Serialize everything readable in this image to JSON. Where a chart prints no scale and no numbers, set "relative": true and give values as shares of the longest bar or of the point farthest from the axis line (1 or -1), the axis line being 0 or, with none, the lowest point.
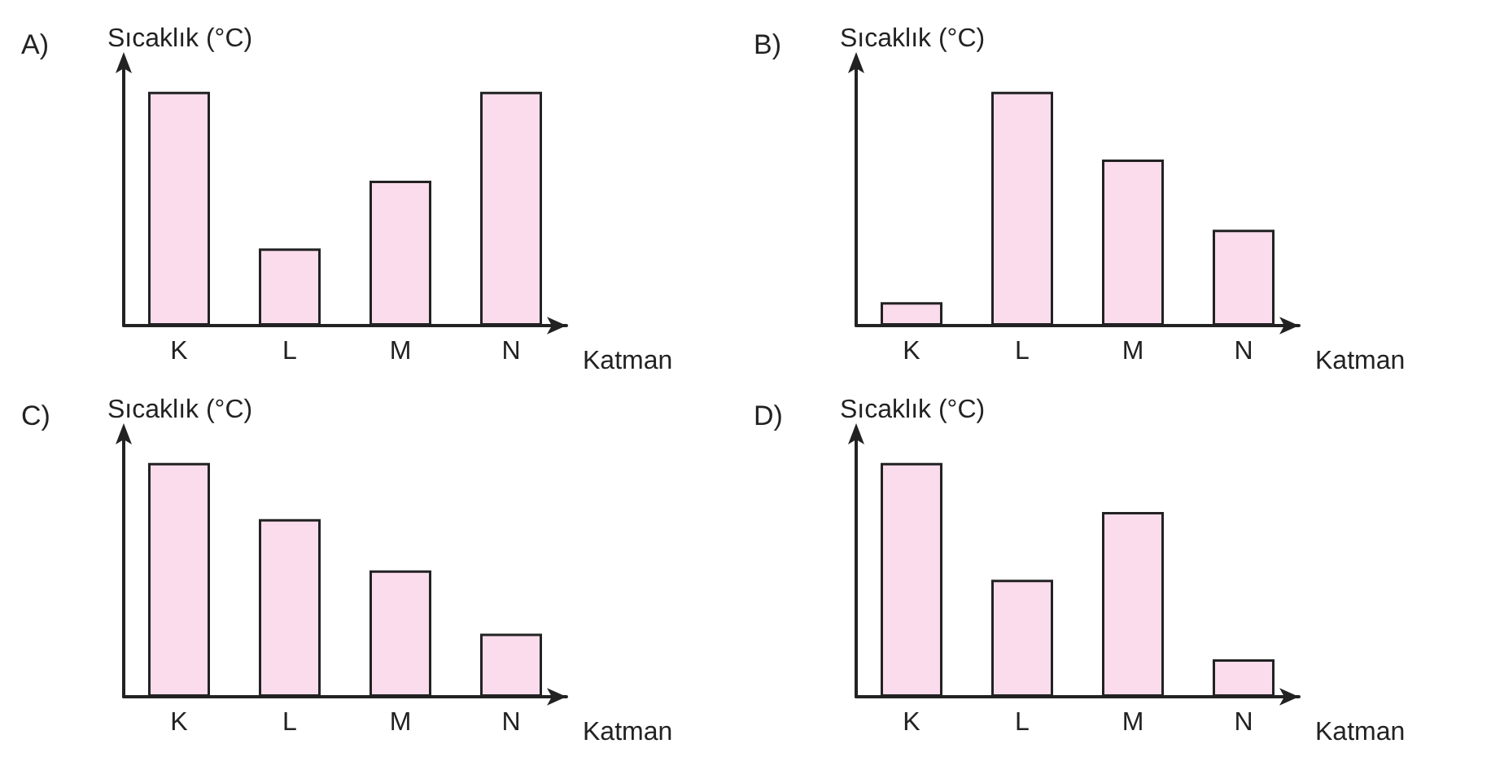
{
  "chart_data": [
    {
      "type": "bar",
      "title": "A)",
      "ylabel": "Sıcaklık (°C)",
      "xlabel": "Katman",
      "categories": [
        "K",
        "L",
        "M",
        "N"
      ],
      "values": [
        1,
        0.33,
        0.62,
        1
      ],
      "color": "#fadcec",
      "relative": true
    },
    {
      "type": "bar",
      "title": "B)",
      "ylabel": "Sıcaklık (°C)",
      "xlabel": "Katman",
      "categories": [
        "K",
        "L",
        "M",
        "N"
      ],
      "values": [
        0.1,
        1,
        0.71,
        0.41
      ],
      "color": "#fadcec",
      "relative": true
    },
    {
      "type": "bar",
      "title": "C)",
      "ylabel": "Sıcaklık (°C)",
      "xlabel": "Katman",
      "categories": [
        "K",
        "L",
        "M",
        "N"
      ],
      "values": [
        1,
        0.76,
        0.54,
        0.27
      ],
      "color": "#fadcec",
      "relative": true
    },
    {
      "type": "bar",
      "title": "D)",
      "ylabel": "Sıcaklık (°C)",
      "xlabel": "Katman",
      "categories": [
        "K",
        "L",
        "M",
        "N"
      ],
      "values": [
        1,
        0.5,
        0.79,
        0.16
      ],
      "color": "#fadcec",
      "relative": true
    }
  ]
}
